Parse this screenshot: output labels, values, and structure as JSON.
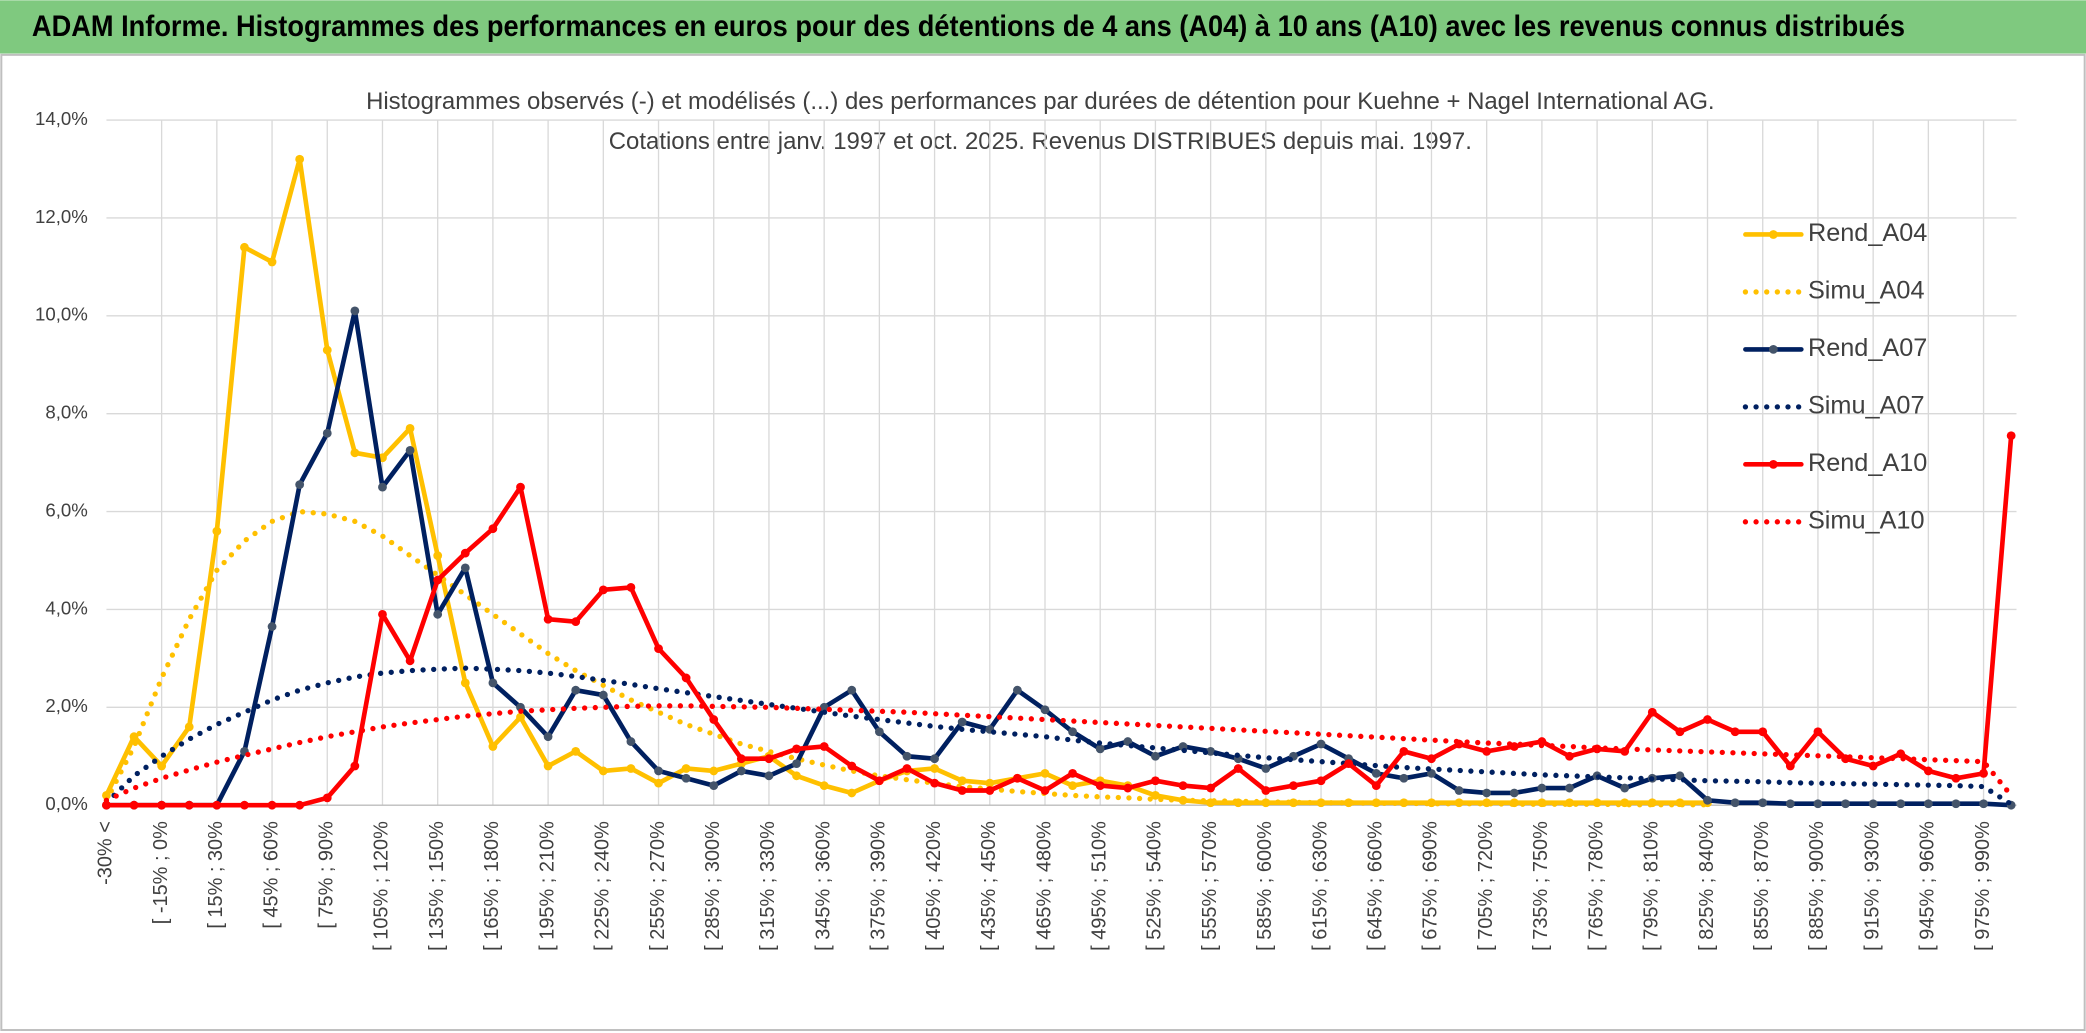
{
  "chart_data": {
    "type": "line",
    "title": "ADAM Informe. Histogrammes des performances en euros pour des détentions de 4 ans (A04) à 10 ans (A10) avec les revenus connus distribués",
    "subtitle": [
      "Histogrammes observés (-) et modélisés (...) des performances par durées de détention pour Kuehne + Nagel International AG.",
      "Cotations entre janv. 1997 et oct. 2025. Revenus DISTRIBUES depuis mai. 1997."
    ],
    "categories": [
      "-30% <",
      null,
      "[ -15% ; 0%",
      null,
      "[ 15% ; 30%",
      null,
      "[ 45% ; 60%",
      null,
      "[ 75% ; 90%",
      null,
      "[ 105% ; 120%",
      null,
      "[ 135% ; 150%",
      null,
      "[ 165% ; 180%",
      null,
      "[ 195% ; 210%",
      null,
      "[ 225% ; 240%",
      null,
      "[ 255% ; 270%",
      null,
      "[ 285% ; 300%",
      null,
      "[ 315% ; 330%",
      null,
      "[ 345% ; 360%",
      null,
      "[ 375% ; 390%",
      null,
      "[ 405% ; 420%",
      null,
      "[ 435% ; 450%",
      null,
      "[ 465% ; 480%",
      null,
      "[ 495% ; 510%",
      null,
      "[ 525% ; 540%",
      null,
      "[ 555% ; 570%",
      null,
      "[ 585% ; 600%",
      null,
      "[ 615% ; 630%",
      null,
      "[ 645% ; 660%",
      null,
      "[ 675% ; 690%",
      null,
      "[ 705% ; 720%",
      null,
      "[ 735% ; 750%",
      null,
      "[ 765% ; 780%",
      null,
      "[ 795% ; 810%",
      null,
      "[ 825% ; 840%",
      null,
      "[ 855% ; 870%",
      null,
      "[ 885% ; 900%",
      null,
      "[ 915% ; 930%",
      null,
      "[ 945% ; 960%",
      null,
      "[ 975% ; 990%",
      null
    ],
    "series": [
      {
        "name": "Rend_A04",
        "color": "#ffc000",
        "style": "solid",
        "markers": true,
        "values": [
          0.2,
          1.4,
          0.8,
          1.6,
          5.6,
          11.4,
          11.1,
          13.2,
          9.3,
          7.2,
          7.1,
          7.7,
          5.1,
          2.5,
          1.2,
          1.8,
          0.8,
          1.1,
          0.7,
          0.75,
          0.45,
          0.75,
          0.7,
          0.85,
          1.0,
          0.6,
          0.4,
          0.25,
          0.5,
          0.7,
          0.75,
          0.5,
          0.45,
          0.55,
          0.65,
          0.4,
          0.5,
          0.4,
          0.2,
          0.1,
          0.05,
          0.05,
          0.05,
          0.05,
          0.05,
          0.05,
          0.05,
          0.05,
          0.05,
          0.05,
          0.05,
          0.05,
          0.05,
          0.05,
          0.05,
          0.05,
          0.05,
          0.05,
          0.05,
          null,
          null,
          null,
          null,
          null,
          null,
          null,
          null,
          null,
          null,
          null
        ]
      },
      {
        "name": "Simu_A04",
        "color": "#ffc000",
        "style": "dotted",
        "markers": false,
        "values": [
          0.1,
          1.2,
          2.6,
          3.8,
          4.8,
          5.4,
          5.8,
          6.0,
          5.95,
          5.8,
          5.5,
          5.1,
          4.7,
          4.3,
          3.9,
          3.5,
          3.1,
          2.75,
          2.45,
          2.15,
          1.9,
          1.65,
          1.45,
          1.25,
          1.1,
          0.95,
          0.82,
          0.7,
          0.6,
          0.52,
          0.45,
          0.38,
          0.33,
          0.28,
          0.24,
          0.2,
          0.17,
          0.15,
          0.12,
          0.1,
          0.09,
          0.08,
          0.07,
          0.06,
          0.05,
          0.05,
          0.04,
          0.04,
          0.03,
          0.03,
          0.03,
          0.02,
          0.02,
          0.02,
          0.02,
          0.01,
          0.01,
          0.01,
          0.01,
          null,
          null,
          null,
          null,
          null,
          null,
          null,
          null,
          null,
          null,
          null
        ]
      },
      {
        "name": "Rend_A07",
        "color": "#002060",
        "style": "solid",
        "markers": true,
        "values": [
          0,
          0,
          0,
          0,
          0,
          1.1,
          3.65,
          6.55,
          7.6,
          10.1,
          6.5,
          7.25,
          3.9,
          4.85,
          2.5,
          2.0,
          1.4,
          2.35,
          2.25,
          1.3,
          0.7,
          0.55,
          0.4,
          0.7,
          0.6,
          0.85,
          2.0,
          2.35,
          1.5,
          1.0,
          0.95,
          1.7,
          1.55,
          2.35,
          1.95,
          1.5,
          1.15,
          1.3,
          1.0,
          1.2,
          1.1,
          0.95,
          0.75,
          1.0,
          1.25,
          0.95,
          0.65,
          0.55,
          0.65,
          0.3,
          0.25,
          0.25,
          0.35,
          0.35,
          0.6,
          0.35,
          0.55,
          0.6,
          0.1,
          0.05,
          0.05,
          0.03,
          0.03,
          0.03,
          0.03,
          0.03,
          0.03,
          0.03,
          0.03,
          0
        ]
      },
      {
        "name": "Simu_A07",
        "color": "#002060",
        "style": "dotted",
        "markers": false,
        "values": [
          0.05,
          0.6,
          1.0,
          1.35,
          1.65,
          1.9,
          2.15,
          2.35,
          2.5,
          2.62,
          2.7,
          2.75,
          2.78,
          2.8,
          2.78,
          2.75,
          2.7,
          2.63,
          2.55,
          2.47,
          2.38,
          2.3,
          2.22,
          2.14,
          2.06,
          1.98,
          1.9,
          1.82,
          1.75,
          1.68,
          1.61,
          1.55,
          1.5,
          1.45,
          1.4,
          1.33,
          1.27,
          1.22,
          1.17,
          1.12,
          1.07,
          1.02,
          0.97,
          0.93,
          0.89,
          0.85,
          0.81,
          0.77,
          0.74,
          0.71,
          0.68,
          0.65,
          0.62,
          0.6,
          0.58,
          0.56,
          0.54,
          0.52,
          0.5,
          0.49,
          0.48,
          0.46,
          0.45,
          0.44,
          0.43,
          0.42,
          0.41,
          0.4,
          0.38,
          0.02
        ]
      },
      {
        "name": "Rend_A10",
        "color": "#ff0000",
        "style": "solid",
        "markers": true,
        "values": [
          0,
          0,
          0,
          0,
          0,
          0,
          0,
          0,
          0.15,
          0.8,
          3.9,
          2.95,
          4.6,
          5.15,
          5.65,
          6.5,
          3.8,
          3.75,
          4.4,
          4.45,
          3.2,
          2.6,
          1.75,
          0.95,
          0.95,
          1.15,
          1.2,
          0.8,
          0.5,
          0.75,
          0.45,
          0.3,
          0.3,
          0.55,
          0.3,
          0.65,
          0.4,
          0.35,
          0.5,
          0.4,
          0.35,
          0.75,
          0.3,
          0.4,
          0.5,
          0.85,
          0.4,
          1.1,
          0.95,
          1.25,
          1.1,
          1.2,
          1.3,
          1.0,
          1.15,
          1.1,
          1.9,
          1.5,
          1.75,
          1.5,
          1.5,
          0.8,
          1.5,
          0.95,
          0.8,
          1.05,
          0.7,
          0.55,
          0.65,
          7.55
        ]
      },
      {
        "name": "Simu_A10",
        "color": "#ff0000",
        "style": "dotted",
        "markers": false,
        "values": [
          0.1,
          0.35,
          0.55,
          0.72,
          0.88,
          1.02,
          1.15,
          1.28,
          1.4,
          1.5,
          1.6,
          1.68,
          1.75,
          1.82,
          1.87,
          1.92,
          1.95,
          1.98,
          2.0,
          2.02,
          2.03,
          2.03,
          2.02,
          2.01,
          2.0,
          1.98,
          1.96,
          1.94,
          1.92,
          1.9,
          1.87,
          1.84,
          1.81,
          1.78,
          1.75,
          1.72,
          1.69,
          1.66,
          1.63,
          1.6,
          1.57,
          1.54,
          1.51,
          1.48,
          1.45,
          1.42,
          1.39,
          1.36,
          1.33,
          1.3,
          1.27,
          1.25,
          1.22,
          1.2,
          1.17,
          1.15,
          1.13,
          1.11,
          1.09,
          1.07,
          1.05,
          1.03,
          1.01,
          0.99,
          0.97,
          0.95,
          0.93,
          0.91,
          0.89,
          0.2
        ]
      }
    ],
    "ylim": [
      0,
      14
    ],
    "yticks": [
      {
        "value": 0,
        "label": "0,0%"
      },
      {
        "value": 2,
        "label": "2,0%"
      },
      {
        "value": 4,
        "label": "4,0%"
      },
      {
        "value": 6,
        "label": "6,0%"
      },
      {
        "value": 8,
        "label": "8,0%"
      },
      {
        "value": 10,
        "label": "10,0%"
      },
      {
        "value": 12,
        "label": "12,0%"
      },
      {
        "value": 14,
        "label": "14,0%"
      }
    ],
    "grid": true,
    "legend": "right"
  }
}
